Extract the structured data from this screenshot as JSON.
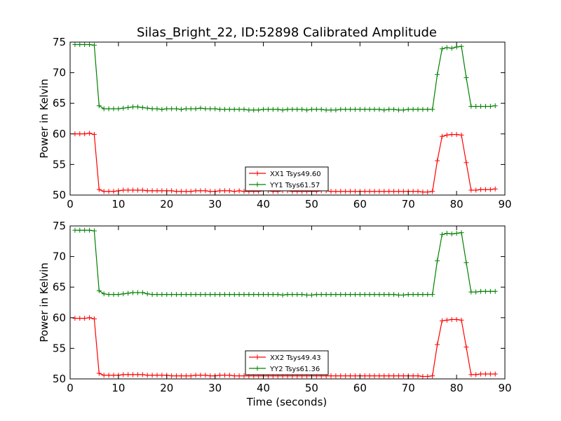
{
  "figure": {
    "title": "Silas_Bright_22, ID:52898 Calibrated Amplitude",
    "xlabel": "Time (seconds)"
  },
  "chart_data": [
    {
      "type": "line",
      "title": "Silas_Bright_22, ID:52898 Calibrated Amplitude",
      "xlabel": "",
      "ylabel": "Power in Kelvin",
      "xlim": [
        0,
        90
      ],
      "ylim": [
        50,
        75
      ],
      "xticks": [
        0,
        10,
        20,
        30,
        40,
        50,
        60,
        70,
        80,
        90
      ],
      "yticks": [
        50,
        55,
        60,
        65,
        70,
        75
      ],
      "grid": false,
      "legend_position": "lower-center",
      "x": [
        1,
        2,
        3,
        4,
        5,
        6,
        7,
        8,
        9,
        10,
        11,
        12,
        13,
        14,
        15,
        16,
        17,
        18,
        19,
        20,
        21,
        22,
        23,
        24,
        25,
        26,
        27,
        28,
        29,
        30,
        31,
        32,
        33,
        34,
        35,
        36,
        37,
        38,
        39,
        40,
        41,
        42,
        43,
        44,
        45,
        46,
        47,
        48,
        49,
        50,
        51,
        52,
        53,
        54,
        55,
        56,
        57,
        58,
        59,
        60,
        61,
        62,
        63,
        64,
        65,
        66,
        67,
        68,
        69,
        70,
        71,
        72,
        73,
        74,
        75,
        76,
        77,
        78,
        79,
        80,
        81,
        82,
        83,
        84,
        85,
        86,
        87,
        88
      ],
      "series": [
        {
          "name": "XX1 Tsys49.60",
          "color": "#ff0000",
          "values": [
            60.0,
            60.0,
            60.0,
            60.1,
            59.9,
            50.9,
            50.6,
            50.6,
            50.6,
            50.7,
            50.8,
            50.8,
            50.8,
            50.8,
            50.8,
            50.7,
            50.7,
            50.7,
            50.7,
            50.7,
            50.7,
            50.6,
            50.6,
            50.6,
            50.6,
            50.7,
            50.7,
            50.7,
            50.6,
            50.6,
            50.7,
            50.7,
            50.7,
            50.6,
            50.7,
            50.6,
            50.6,
            50.6,
            50.6,
            50.7,
            50.7,
            50.6,
            50.6,
            50.7,
            50.7,
            50.6,
            50.6,
            50.6,
            50.6,
            50.6,
            50.6,
            50.7,
            50.7,
            50.6,
            50.6,
            50.6,
            50.6,
            50.6,
            50.6,
            50.6,
            50.6,
            50.6,
            50.6,
            50.6,
            50.6,
            50.6,
            50.6,
            50.6,
            50.6,
            50.6,
            50.6,
            50.6,
            50.5,
            50.5,
            50.6,
            55.6,
            59.6,
            59.8,
            59.9,
            59.9,
            59.8,
            55.3,
            50.8,
            50.8,
            50.9,
            50.9,
            50.9,
            51.0
          ]
        },
        {
          "name": "YY1 Tsys61.57",
          "color": "#008000",
          "values": [
            74.6,
            74.6,
            74.6,
            74.6,
            74.5,
            64.6,
            64.1,
            64.1,
            64.1,
            64.1,
            64.2,
            64.3,
            64.4,
            64.4,
            64.3,
            64.2,
            64.1,
            64.1,
            64.0,
            64.1,
            64.1,
            64.1,
            64.0,
            64.1,
            64.1,
            64.1,
            64.2,
            64.1,
            64.1,
            64.1,
            64.0,
            64.0,
            64.0,
            64.0,
            64.0,
            64.0,
            63.9,
            63.9,
            63.9,
            64.0,
            64.0,
            64.0,
            64.0,
            63.9,
            64.0,
            64.0,
            64.0,
            64.0,
            63.9,
            64.0,
            64.0,
            64.0,
            63.9,
            63.9,
            63.9,
            64.0,
            64.0,
            64.0,
            64.0,
            64.0,
            64.0,
            64.0,
            64.0,
            64.0,
            63.9,
            64.0,
            64.0,
            63.9,
            63.9,
            64.0,
            64.0,
            64.0,
            64.0,
            64.0,
            64.0,
            69.7,
            73.9,
            74.1,
            74.0,
            74.2,
            74.3,
            69.2,
            64.5,
            64.5,
            64.5,
            64.5,
            64.5,
            64.6
          ]
        }
      ]
    },
    {
      "type": "line",
      "xlabel": "Time (seconds)",
      "ylabel": "Power in Kelvin",
      "xlim": [
        0,
        90
      ],
      "ylim": [
        50,
        75
      ],
      "xticks": [
        0,
        10,
        20,
        30,
        40,
        50,
        60,
        70,
        80,
        90
      ],
      "yticks": [
        50,
        55,
        60,
        65,
        70,
        75
      ],
      "grid": false,
      "legend_position": "lower-center",
      "x": [
        1,
        2,
        3,
        4,
        5,
        6,
        7,
        8,
        9,
        10,
        11,
        12,
        13,
        14,
        15,
        16,
        17,
        18,
        19,
        20,
        21,
        22,
        23,
        24,
        25,
        26,
        27,
        28,
        29,
        30,
        31,
        32,
        33,
        34,
        35,
        36,
        37,
        38,
        39,
        40,
        41,
        42,
        43,
        44,
        45,
        46,
        47,
        48,
        49,
        50,
        51,
        52,
        53,
        54,
        55,
        56,
        57,
        58,
        59,
        60,
        61,
        62,
        63,
        64,
        65,
        66,
        67,
        68,
        69,
        70,
        71,
        72,
        73,
        74,
        75,
        76,
        77,
        78,
        79,
        80,
        81,
        82,
        83,
        84,
        85,
        86,
        87,
        88
      ],
      "series": [
        {
          "name": "XX2 Tsys49.43",
          "color": "#ff0000",
          "values": [
            59.9,
            59.9,
            59.9,
            60.0,
            59.8,
            50.9,
            50.6,
            50.6,
            50.6,
            50.6,
            50.7,
            50.7,
            50.7,
            50.7,
            50.7,
            50.6,
            50.6,
            50.6,
            50.6,
            50.6,
            50.5,
            50.5,
            50.5,
            50.5,
            50.5,
            50.6,
            50.6,
            50.6,
            50.5,
            50.5,
            50.6,
            50.6,
            50.6,
            50.5,
            50.5,
            50.5,
            50.5,
            50.5,
            50.5,
            50.5,
            50.5,
            50.5,
            50.5,
            50.5,
            50.5,
            50.5,
            50.5,
            50.5,
            50.5,
            50.5,
            50.5,
            50.5,
            50.5,
            50.5,
            50.5,
            50.5,
            50.5,
            50.5,
            50.5,
            50.5,
            50.5,
            50.5,
            50.5,
            50.5,
            50.5,
            50.5,
            50.5,
            50.5,
            50.5,
            50.5,
            50.5,
            50.5,
            50.4,
            50.4,
            50.5,
            55.6,
            59.5,
            59.6,
            59.7,
            59.7,
            59.6,
            55.2,
            50.7,
            50.7,
            50.8,
            50.8,
            50.8,
            50.8
          ]
        },
        {
          "name": "YY2 Tsys61.36",
          "color": "#008000",
          "values": [
            74.3,
            74.3,
            74.3,
            74.3,
            74.2,
            64.4,
            63.9,
            63.8,
            63.8,
            63.8,
            63.9,
            64.0,
            64.1,
            64.1,
            64.1,
            63.9,
            63.8,
            63.8,
            63.8,
            63.8,
            63.8,
            63.8,
            63.8,
            63.8,
            63.8,
            63.8,
            63.8,
            63.8,
            63.8,
            63.8,
            63.8,
            63.8,
            63.8,
            63.8,
            63.8,
            63.8,
            63.8,
            63.8,
            63.8,
            63.8,
            63.8,
            63.8,
            63.8,
            63.7,
            63.8,
            63.8,
            63.8,
            63.8,
            63.7,
            63.7,
            63.8,
            63.8,
            63.8,
            63.8,
            63.8,
            63.8,
            63.8,
            63.8,
            63.8,
            63.8,
            63.8,
            63.8,
            63.8,
            63.8,
            63.8,
            63.8,
            63.8,
            63.7,
            63.7,
            63.8,
            63.8,
            63.8,
            63.8,
            63.8,
            63.8,
            69.3,
            73.6,
            73.8,
            73.7,
            73.8,
            73.9,
            69.0,
            64.2,
            64.2,
            64.3,
            64.3,
            64.3,
            64.3
          ]
        }
      ]
    }
  ]
}
